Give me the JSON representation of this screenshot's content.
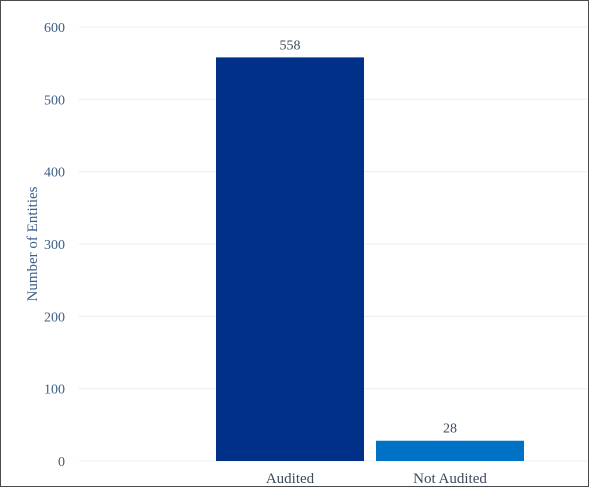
{
  "chart_data": {
    "type": "bar",
    "categories": [
      "Audited",
      "Not Audited"
    ],
    "values": [
      558,
      28
    ],
    "data_labels": [
      "558",
      "28"
    ],
    "ylabel": "Number of Entities",
    "xlabel": "",
    "ylim": [
      0,
      600
    ],
    "yticks": [
      0,
      100,
      200,
      300,
      400,
      500,
      600
    ],
    "grid": true,
    "legend": "none",
    "colors": [
      "#003087",
      "#0072c6"
    ]
  }
}
